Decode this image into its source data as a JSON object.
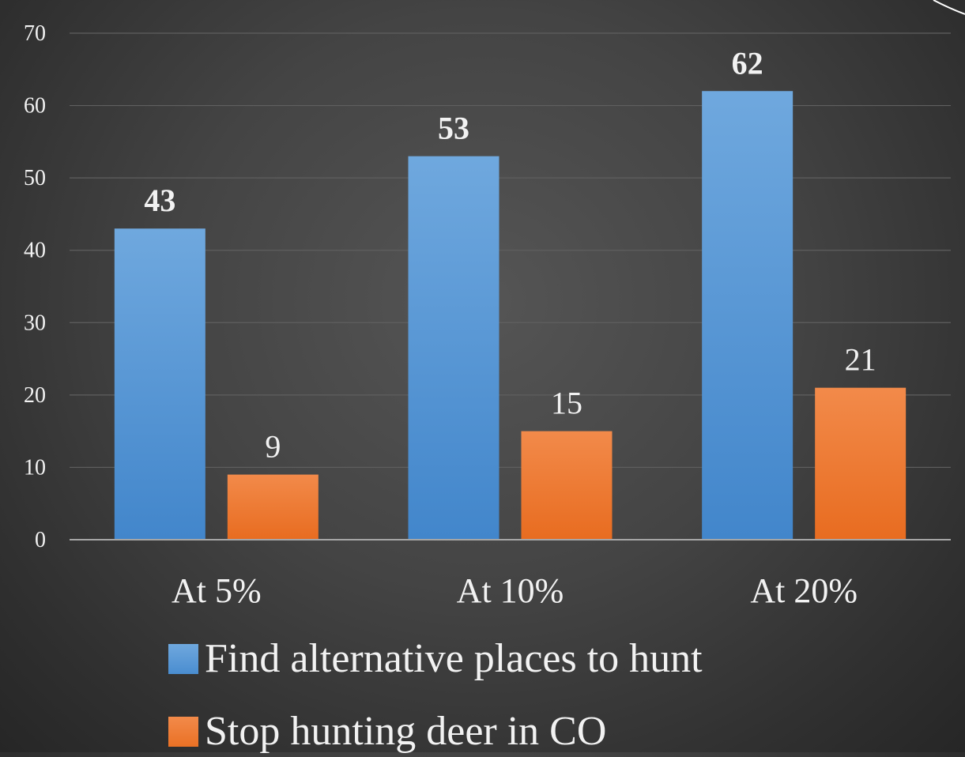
{
  "chart_data": {
    "type": "bar",
    "categories": [
      "At 5%",
      "At 10%",
      "At 20%"
    ],
    "series": [
      {
        "name": "Find alternative places to hunt",
        "values": [
          43,
          53,
          62
        ],
        "color": "#5b9bd5",
        "label_style": "bold"
      },
      {
        "name": "Stop hunting deer in CO",
        "values": [
          9,
          15,
          21
        ],
        "color": "#ed7d31",
        "label_style": "normal"
      }
    ],
    "title": "",
    "xlabel": "",
    "ylabel": "",
    "ylim": [
      0,
      70
    ],
    "yticks": [
      "0",
      "10",
      "20",
      "30",
      "40",
      "50",
      "60",
      "70"
    ],
    "grid": true,
    "legend_position": "bottom",
    "background": "#404040"
  }
}
